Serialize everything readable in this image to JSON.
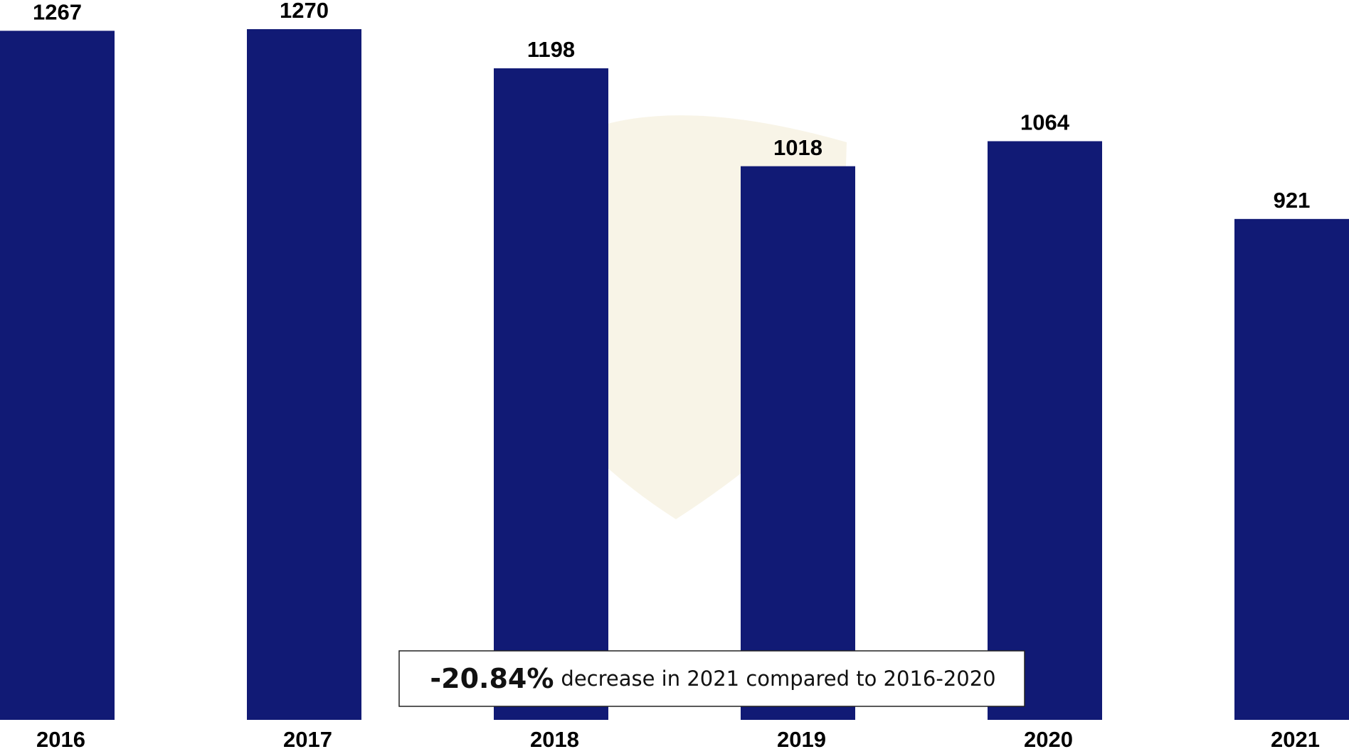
{
  "chart_data": {
    "type": "bar",
    "categories": [
      "2016",
      "2017",
      "2018",
      "2019",
      "2020",
      "2021"
    ],
    "values": [
      1267,
      1270,
      1198,
      1018,
      1064,
      921
    ],
    "color": "#111a75",
    "ylim": [
      0,
      1270
    ],
    "annotation": {
      "highlight": "-20.84%",
      "text": "decrease in 2021 compared to 2016-2020"
    }
  }
}
